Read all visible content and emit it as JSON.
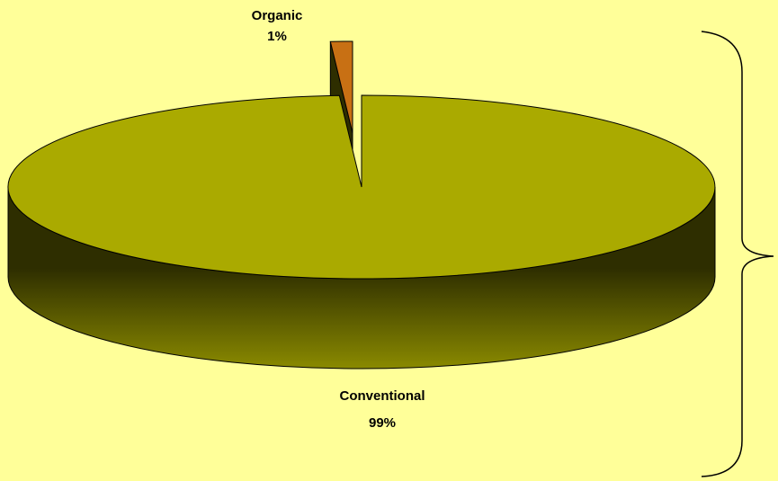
{
  "chart_data": {
    "type": "pie",
    "categories": [
      "Organic",
      "Conventional"
    ],
    "values": [
      1,
      99
    ],
    "value_labels": [
      "1%",
      "99%"
    ],
    "colors": [
      "#c87014",
      "#aaaa00"
    ],
    "explode": [
      true,
      false
    ]
  }
}
